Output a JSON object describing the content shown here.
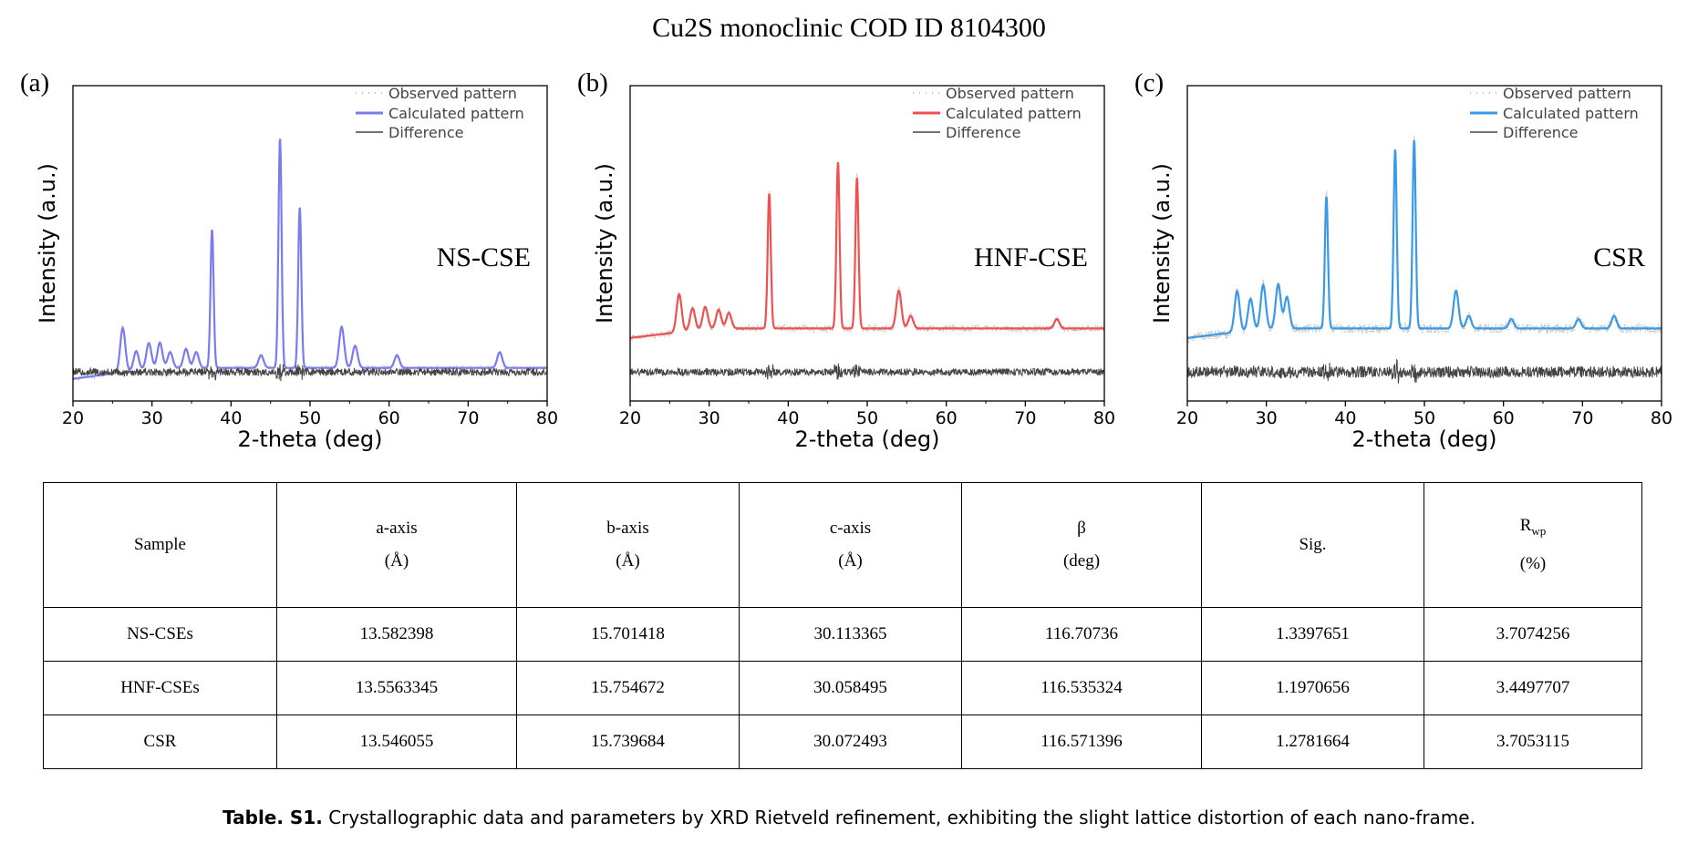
{
  "title": "Cu2S monoclinic  COD ID 8104300",
  "chart_data": [
    {
      "type": "line",
      "panel_label": "(a)",
      "sample_label": "NS-CSE",
      "xlabel": "2-theta (deg)",
      "ylabel": "Intensity (a.u.)",
      "xlim": [
        20,
        80
      ],
      "xticks": [
        20,
        30,
        40,
        50,
        60,
        70,
        80
      ],
      "calc_color": "#7b7bf0",
      "legend": [
        "Observed pattern",
        "Calculated pattern",
        "Difference"
      ],
      "legend_position": "top-right",
      "baseline": 0.07,
      "rise": 0.035,
      "noise": 0.005,
      "diff_noise": 0.012,
      "peaks": [
        {
          "x": 26.3,
          "h": 0.14
        },
        {
          "x": 28.0,
          "h": 0.06
        },
        {
          "x": 29.6,
          "h": 0.08
        },
        {
          "x": 31.0,
          "h": 0.08
        },
        {
          "x": 32.3,
          "h": 0.05
        },
        {
          "x": 34.3,
          "h": 0.06
        },
        {
          "x": 35.6,
          "h": 0.05
        },
        {
          "x": 37.6,
          "h": 0.44
        },
        {
          "x": 43.8,
          "h": 0.04
        },
        {
          "x": 46.2,
          "h": 0.73
        },
        {
          "x": 48.7,
          "h": 0.51
        },
        {
          "x": 54.0,
          "h": 0.13
        },
        {
          "x": 55.7,
          "h": 0.07
        },
        {
          "x": 61.0,
          "h": 0.04
        },
        {
          "x": 74.0,
          "h": 0.05
        }
      ]
    },
    {
      "type": "line",
      "panel_label": "(b)",
      "sample_label": "HNF-CSE",
      "xlabel": "2-theta (deg)",
      "ylabel": "Intensity (a.u.)",
      "xlim": [
        20,
        80
      ],
      "xticks": [
        20,
        30,
        40,
        50,
        60,
        70,
        80
      ],
      "calc_color": "#f05050",
      "legend": [
        "Observed pattern",
        "Calculated pattern",
        "Difference"
      ],
      "legend_position": "top-right",
      "baseline": 0.2,
      "rise": 0.03,
      "noise": 0.007,
      "diff_noise": 0.011,
      "peaks": [
        {
          "x": 26.2,
          "h": 0.12
        },
        {
          "x": 27.9,
          "h": 0.07
        },
        {
          "x": 29.5,
          "h": 0.07
        },
        {
          "x": 31.2,
          "h": 0.06
        },
        {
          "x": 32.5,
          "h": 0.05
        },
        {
          "x": 37.6,
          "h": 0.43
        },
        {
          "x": 46.3,
          "h": 0.53
        },
        {
          "x": 48.7,
          "h": 0.48
        },
        {
          "x": 54.0,
          "h": 0.12
        },
        {
          "x": 55.5,
          "h": 0.04
        },
        {
          "x": 74.0,
          "h": 0.03
        }
      ]
    },
    {
      "type": "line",
      "panel_label": "(c)",
      "sample_label": "CSR",
      "xlabel": "2-theta (deg)",
      "ylabel": "Intensity (a.u.)",
      "xlim": [
        20,
        80
      ],
      "xticks": [
        20,
        30,
        40,
        50,
        60,
        70,
        80
      ],
      "calc_color": "#3a9ae8",
      "legend": [
        "Observed pattern",
        "Calculated pattern",
        "Difference"
      ],
      "legend_position": "top-right",
      "baseline": 0.2,
      "rise": 0.03,
      "noise": 0.01,
      "diff_noise": 0.018,
      "peaks": [
        {
          "x": 26.3,
          "h": 0.13
        },
        {
          "x": 28.0,
          "h": 0.1
        },
        {
          "x": 29.6,
          "h": 0.14
        },
        {
          "x": 31.5,
          "h": 0.14
        },
        {
          "x": 32.6,
          "h": 0.1
        },
        {
          "x": 37.6,
          "h": 0.42
        },
        {
          "x": 46.3,
          "h": 0.57
        },
        {
          "x": 48.7,
          "h": 0.6
        },
        {
          "x": 54.0,
          "h": 0.12
        },
        {
          "x": 55.6,
          "h": 0.04
        },
        {
          "x": 61.0,
          "h": 0.03
        },
        {
          "x": 69.5,
          "h": 0.03
        },
        {
          "x": 74.0,
          "h": 0.04
        }
      ]
    }
  ],
  "table": {
    "headers": [
      {
        "line1": "Sample",
        "line2": ""
      },
      {
        "line1": "a-axis",
        "line2": "(Å)"
      },
      {
        "line1": "b-axis",
        "line2": "(Å)"
      },
      {
        "line1": "c-axis",
        "line2": "(Å)"
      },
      {
        "line1": "β",
        "line2": "(deg)"
      },
      {
        "line1": "Sig.",
        "line2": ""
      },
      {
        "line1": "R",
        "sub": "wp",
        "line2": "(%)"
      }
    ],
    "rows": [
      [
        "NS-CSEs",
        "13.582398",
        "15.701418",
        "30.113365",
        "116.70736",
        "1.3397651",
        "3.7074256"
      ],
      [
        "HNF-CSEs",
        "13.5563345",
        "15.754672",
        "30.058495",
        "116.535324",
        "1.1970656",
        "3.4497707"
      ],
      [
        "CSR",
        "13.546055",
        "15.739684",
        "30.072493",
        "116.571396",
        "1.2781664",
        "3.7053115"
      ]
    ]
  },
  "caption": {
    "bold": "Table. S1.",
    "text": " Crystallographic data and parameters by XRD Rietveld refinement, exhibiting the slight lattice distortion of each nano-frame."
  }
}
